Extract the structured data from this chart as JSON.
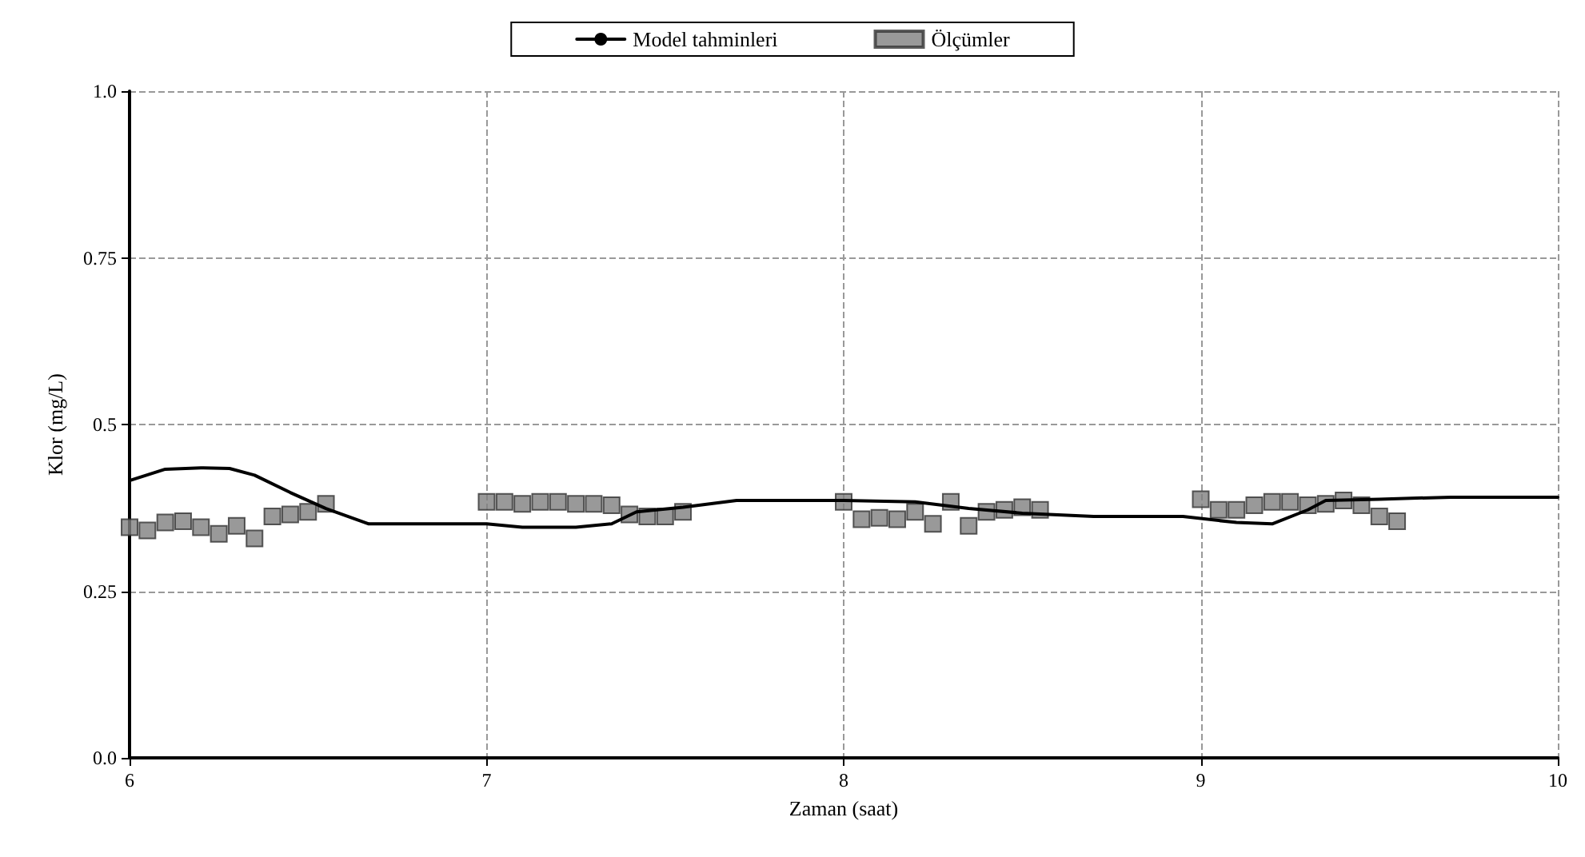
{
  "chart_data": {
    "type": "line",
    "xlabel": "Zaman (saat)",
    "ylabel": "Klor (mg/L)",
    "xlim": [
      6,
      10
    ],
    "xticks": [
      6,
      7,
      8,
      9,
      10
    ],
    "ylim": [
      0,
      1
    ],
    "yticks": [
      {
        "value": 0,
        "label": "0.0"
      },
      0.25,
      {
        "value": 0.5,
        "label": "0.5"
      },
      0.75,
      {
        "value": 1,
        "label": "1.0"
      }
    ],
    "grid": true,
    "legend": "top",
    "series": [
      {
        "name": "Model tahminleri",
        "color": "#000000",
        "marker": "none",
        "line_style": "solid",
        "x": [
          6,
          6.1,
          6.2,
          6.28,
          6.35,
          6.45,
          6.55,
          6.67,
          6.8,
          7,
          7.1,
          7.25,
          7.35,
          7.42,
          7.55,
          7.7,
          8,
          8.2,
          8.35,
          8.5,
          8.7,
          8.95,
          9.1,
          9.2,
          9.3,
          9.35,
          9.5,
          9.7,
          10
        ],
        "values": [
          0.416,
          0.433,
          0.435,
          0.434,
          0.424,
          0.398,
          0.374,
          0.351,
          0.351,
          0.351,
          0.346,
          0.346,
          0.351,
          0.369,
          0.376,
          0.386,
          0.386,
          0.384,
          0.374,
          0.367,
          0.362,
          0.362,
          0.353,
          0.351,
          0.372,
          0.386,
          0.388,
          0.391,
          0.391
        ]
      },
      {
        "name": "Ölçümler",
        "type": "scatter",
        "color": "#808080",
        "marker": "square",
        "x": [
          6,
          6.05,
          6.1,
          6.15,
          6.2,
          6.25,
          6.3,
          6.35,
          6.4,
          6.45,
          6.5,
          6.55,
          7,
          7.05,
          7.1,
          7.15,
          7.2,
          7.25,
          7.3,
          7.35,
          7.4,
          7.45,
          7.5,
          7.55,
          8,
          8.05,
          8.1,
          8.15,
          8.2,
          8.25,
          8.3,
          8.35,
          8.4,
          8.45,
          8.5,
          8.55,
          9,
          9.05,
          9.1,
          9.15,
          9.2,
          9.25,
          9.3,
          9.35,
          9.4,
          9.45,
          9.5,
          9.55
        ],
        "values": [
          0.346,
          0.341,
          0.353,
          0.355,
          0.346,
          0.336,
          0.348,
          0.329,
          0.362,
          0.365,
          0.369,
          0.381,
          0.384,
          0.384,
          0.381,
          0.384,
          0.384,
          0.381,
          0.381,
          0.379,
          0.365,
          0.362,
          0.362,
          0.369,
          0.384,
          0.358,
          0.36,
          0.358,
          0.369,
          0.351,
          0.384,
          0.348,
          0.369,
          0.372,
          0.376,
          0.372,
          0.388,
          0.372,
          0.372,
          0.379,
          0.384,
          0.384,
          0.379,
          0.381,
          0.386,
          0.379,
          0.362,
          0.355
        ]
      }
    ]
  }
}
